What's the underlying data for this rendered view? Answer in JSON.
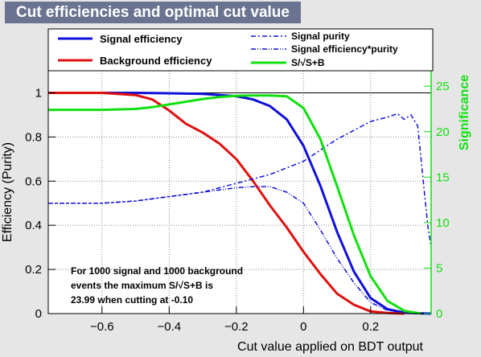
{
  "title": "Cut efficiencies and optimal cut value",
  "colors": {
    "signal": "#1010d8",
    "background": "#e01010",
    "significance": "#10e010",
    "purity": "#1010d8",
    "title_bg": "#6a7490"
  },
  "legend": {
    "signal_efficiency": "Signal efficiency",
    "background_efficiency": "Background efficiency",
    "signal_purity": "Signal purity",
    "signal_eff_purity": "Signal efficiency*purity",
    "significance": "S/√S+B"
  },
  "annotation": {
    "line1": "For 1000 signal and 1000 background",
    "line2": "events the maximum S/√S+B is",
    "line3": "23.99 when cutting at -0.10"
  },
  "chart_data": {
    "type": "line",
    "title": "Cut efficiencies and optimal cut value",
    "xlabel": "Cut value applied on BDT output",
    "ylabel": "Efficiency (Purity)",
    "y2label": "Significance",
    "xlim": [
      -0.76,
      0.38
    ],
    "ylim": [
      0,
      1.1
    ],
    "y2lim": [
      0,
      26.7
    ],
    "x_ticks": [
      -0.6,
      -0.4,
      -0.2,
      0,
      0.2
    ],
    "y_ticks": [
      0,
      0.2,
      0.4,
      0.6,
      0.8,
      1
    ],
    "y2_ticks": [
      0,
      5,
      10,
      15,
      20,
      25
    ],
    "grid": true,
    "legend_position": "top",
    "series": [
      {
        "name": "Signal efficiency",
        "axis": "left",
        "style": "solid",
        "x": [
          -0.76,
          -0.6,
          -0.5,
          -0.4,
          -0.3,
          -0.2,
          -0.15,
          -0.1,
          -0.05,
          0,
          0.05,
          0.1,
          0.15,
          0.2,
          0.25,
          0.3,
          0.35,
          0.38
        ],
        "y": [
          1,
          1,
          1,
          0.998,
          0.995,
          0.985,
          0.97,
          0.94,
          0.88,
          0.76,
          0.58,
          0.37,
          0.19,
          0.07,
          0.02,
          0.004,
          0.001,
          0
        ]
      },
      {
        "name": "Background efficiency",
        "axis": "left",
        "style": "solid",
        "x": [
          -0.76,
          -0.6,
          -0.5,
          -0.45,
          -0.4,
          -0.35,
          -0.3,
          -0.25,
          -0.2,
          -0.15,
          -0.1,
          -0.05,
          0,
          0.05,
          0.1,
          0.15,
          0.2,
          0.25,
          0.3
        ],
        "y": [
          1,
          1,
          0.99,
          0.97,
          0.92,
          0.86,
          0.82,
          0.77,
          0.7,
          0.6,
          0.49,
          0.39,
          0.28,
          0.18,
          0.09,
          0.04,
          0.01,
          0.003,
          0
        ]
      },
      {
        "name": "Signal purity",
        "axis": "left",
        "style": "dashdot",
        "x": [
          -0.76,
          -0.6,
          -0.5,
          -0.4,
          -0.3,
          -0.2,
          -0.1,
          0,
          0.05,
          0.1,
          0.15,
          0.2,
          0.25,
          0.28,
          0.3,
          0.32,
          0.34,
          0.35,
          0.36,
          0.37,
          0.38
        ],
        "y": [
          0.5,
          0.5,
          0.51,
          0.53,
          0.55,
          0.59,
          0.63,
          0.69,
          0.74,
          0.79,
          0.83,
          0.87,
          0.89,
          0.905,
          0.88,
          0.9,
          0.85,
          0.7,
          0.55,
          0.4,
          0.3
        ]
      },
      {
        "name": "Signal efficiency*purity",
        "axis": "left",
        "style": "dashdotdot",
        "x": [
          -0.76,
          -0.6,
          -0.5,
          -0.4,
          -0.3,
          -0.2,
          -0.15,
          -0.1,
          -0.05,
          0,
          0.05,
          0.1,
          0.15,
          0.2,
          0.25,
          0.3,
          0.35
        ],
        "y": [
          0.5,
          0.5,
          0.51,
          0.53,
          0.55,
          0.57,
          0.575,
          0.575,
          0.55,
          0.5,
          0.38,
          0.25,
          0.14,
          0.05,
          0.015,
          0.003,
          0
        ]
      },
      {
        "name": "S/√S+B",
        "axis": "right",
        "style": "solid",
        "x": [
          -0.76,
          -0.6,
          -0.5,
          -0.45,
          -0.4,
          -0.35,
          -0.3,
          -0.25,
          -0.2,
          -0.15,
          -0.1,
          -0.05,
          0,
          0.05,
          0.1,
          0.15,
          0.2,
          0.25,
          0.3,
          0.35
        ],
        "y": [
          22.4,
          22.4,
          22.5,
          22.7,
          23.0,
          23.3,
          23.6,
          23.8,
          23.95,
          23.98,
          23.99,
          23.9,
          22.6,
          19.2,
          14.0,
          8.6,
          4.1,
          1.4,
          0.3,
          0
        ]
      }
    ]
  }
}
